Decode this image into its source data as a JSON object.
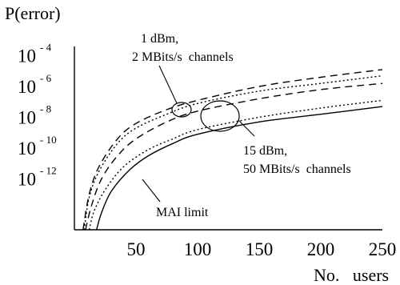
{
  "chart_data": {
    "type": "line",
    "ylabel": "P(error)",
    "xlabel": "No.   users",
    "y_scale": "log",
    "x_ticks": [
      "50",
      "100",
      "150",
      "200",
      "250"
    ],
    "y_ticks": [
      {
        "base": "10",
        "exp": "-4",
        "value": 0.0001
      },
      {
        "base": "10",
        "exp": "-6",
        "value": 1e-06
      },
      {
        "base": "10",
        "exp": "-8",
        "value": 1e-08
      },
      {
        "base": "10",
        "exp": "-10",
        "value": 1e-10
      },
      {
        "base": "10",
        "exp": "-12",
        "value": 1e-12
      }
    ],
    "xlim": [
      0,
      250
    ],
    "ylim_exp": [
      -15.3,
      -3.4
    ],
    "grid": false,
    "series": [
      {
        "style": "dashed",
        "group": "1 dBm, 2 MBits/s channels",
        "x": [
          7,
          12,
          20,
          35,
          50,
          75,
          100,
          150,
          200,
          250
        ],
        "log10_y": [
          -15.3,
          -13.0,
          -11.2,
          -9.4,
          -8.4,
          -7.5,
          -6.9,
          -6.0,
          -5.4,
          -4.9
        ]
      },
      {
        "style": "dotted",
        "group": "1 dBm, 2 MBits/s channels",
        "x": [
          8,
          12,
          20,
          35,
          50,
          75,
          100,
          150,
          200,
          250
        ],
        "log10_y": [
          -15.3,
          -13.2,
          -11.5,
          -9.7,
          -8.7,
          -7.8,
          -7.1,
          -6.3,
          -5.8,
          -5.3
        ]
      },
      {
        "style": "dashed",
        "group": "15 dBm, 50 MBits/s channels",
        "x": [
          9,
          14,
          22,
          35,
          50,
          75,
          100,
          150,
          200,
          250
        ],
        "log10_y": [
          -15.3,
          -13.7,
          -12.0,
          -10.5,
          -9.4,
          -8.3,
          -7.6,
          -6.8,
          -6.2,
          -5.8
        ]
      },
      {
        "style": "dotted",
        "group": "15 dBm, 50 MBits/s channels",
        "x": [
          12,
          16,
          25,
          40,
          60,
          80,
          100,
          150,
          200,
          250
        ],
        "log10_y": [
          -15.3,
          -14.1,
          -12.7,
          -11.2,
          -10.1,
          -9.4,
          -8.8,
          -8.0,
          -7.4,
          -6.9
        ]
      },
      {
        "style": "solid",
        "label": "MAI limit",
        "x": [
          18,
          22,
          30,
          45,
          60,
          80,
          100,
          150,
          200,
          250
        ],
        "log10_y": [
          -15.3,
          -14.2,
          -12.8,
          -11.4,
          -10.5,
          -9.7,
          -9.1,
          -8.3,
          -7.8,
          -7.3
        ]
      }
    ],
    "annotations": [
      {
        "id": "a1",
        "lines": [
          "1 dBm,",
          "2 MBits/s  channels"
        ]
      },
      {
        "id": "a2",
        "lines": [
          "15 dBm,",
          "50 MBits/s  channels"
        ]
      },
      {
        "id": "a3",
        "lines": [
          "MAI limit"
        ]
      }
    ]
  }
}
